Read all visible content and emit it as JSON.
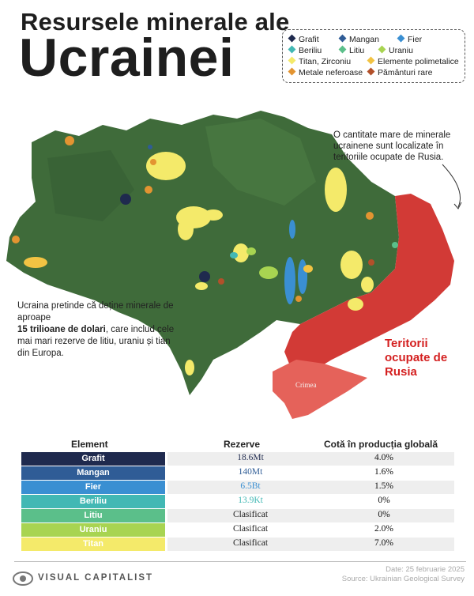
{
  "title": {
    "line1": "Resursele minerale ale",
    "line2": "Ucrainei"
  },
  "legend": [
    {
      "label": "Grafit",
      "color": "#1f2a4e"
    },
    {
      "label": "Mangan",
      "color": "#2f5c96"
    },
    {
      "label": "Fier",
      "color": "#3a8fd2"
    },
    {
      "label": "Beriliu",
      "color": "#42b8b4"
    },
    {
      "label": "Litiu",
      "color": "#5bbf8a"
    },
    {
      "label": "Uraniu",
      "color": "#a8d451"
    },
    {
      "label": "Titan, Zirconiu",
      "color": "#f4ea6a"
    },
    {
      "label": "Elemente polimetalice",
      "color": "#f2c343"
    },
    {
      "label": "Metale neferoase",
      "color": "#e39431"
    },
    {
      "label": "Pământuri rare",
      "color": "#b2502a"
    }
  ],
  "annotations": {
    "top_note": "O cantitate mare de minerale ucrainene sunt localizate în teritoriile ocupate de Rusia.",
    "left_note_pre": "Ucraina pretinde că deține minerale de aproape",
    "left_note_bold": "15 trilioane de dolari",
    "left_note_post": ", care includ cele mai mari rezerve de litiu, uraniu și tian din Europa.",
    "occupied_label": "Teritorii ocupate de Rusia",
    "crimea_label": "Crimea"
  },
  "table": {
    "headers": [
      "Element",
      "Rezerve",
      "Cotă în producția globală"
    ],
    "rows": [
      {
        "element": "Grafit",
        "reserve": "18.6Mt",
        "share": "4.0%",
        "color": "#1f2a4e",
        "reserve_color": "#1f2a4e"
      },
      {
        "element": "Mangan",
        "reserve": "140Mt",
        "share": "1.6%",
        "color": "#2f5c96",
        "reserve_color": "#2f5c96"
      },
      {
        "element": "Fier",
        "reserve": "6.5Bt",
        "share": "1.5%",
        "color": "#3a8fd2",
        "reserve_color": "#3a8fd2"
      },
      {
        "element": "Beriliu",
        "reserve": "13.9Kt",
        "share": "0%",
        "color": "#42b8b4",
        "reserve_color": "#42b8b4"
      },
      {
        "element": "Litiu",
        "reserve": "Clasificat",
        "share": "0%",
        "color": "#5bbf8a",
        "reserve_color": "#222222"
      },
      {
        "element": "Uraniu",
        "reserve": "Clasificat",
        "share": "2.0%",
        "color": "#a8d451",
        "reserve_color": "#222222"
      },
      {
        "element": "Titan",
        "reserve": "Clasificat",
        "share": "7.0%",
        "color": "#f4ea6a",
        "reserve_color": "#222222"
      }
    ]
  },
  "footer": {
    "brand": "VISUAL CAPITALIST",
    "date": "Date: 25 februarie 2025",
    "source": "Source: Ukrainian Geological Survey"
  }
}
